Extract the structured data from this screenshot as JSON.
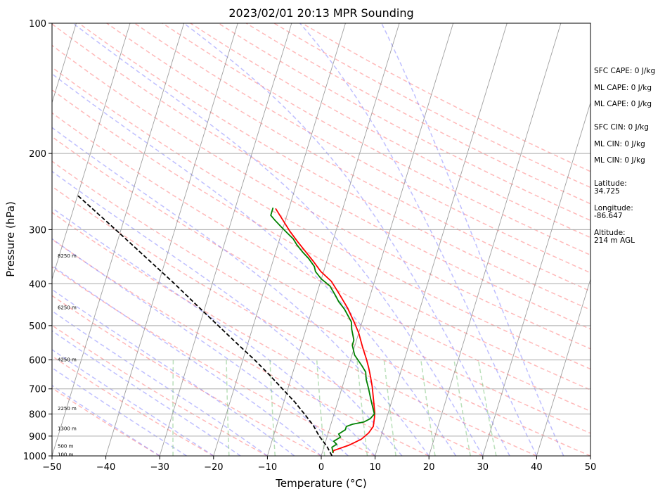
{
  "chart_data": {
    "type": "line",
    "title": "2023/02/01 20:13 MPR Sounding",
    "xlabel": "Temperature (°C)",
    "ylabel": "Pressure (hPa)",
    "xlim": [
      -50,
      50
    ],
    "ylim": [
      1000,
      100
    ],
    "y_scale": "log",
    "grid": true,
    "x_ticks": [
      -50,
      -40,
      -30,
      -20,
      -10,
      0,
      10,
      20,
      30,
      40,
      50
    ],
    "y_ticks": [
      100,
      200,
      300,
      400,
      500,
      600,
      700,
      800,
      900,
      1000
    ],
    "height_labels": [
      {
        "text": "100 m",
        "p": 995
      },
      {
        "text": "500 m",
        "p": 950
      },
      {
        "text": "1300 m",
        "p": 865
      },
      {
        "text": "2250 m",
        "p": 778
      },
      {
        "text": "4250 m",
        "p": 600
      },
      {
        "text": "6250 m",
        "p": 455
      },
      {
        "text": "8250 m",
        "p": 345
      }
    ],
    "series": [
      {
        "color": "#ff0000",
        "points": [
          [
            2.0,
            985
          ],
          [
            2.0,
            972
          ],
          [
            4.5,
            945
          ],
          [
            6.5,
            915
          ],
          [
            7.5,
            885
          ],
          [
            8.0,
            855
          ],
          [
            7.7,
            815
          ],
          [
            7.5,
            795
          ],
          [
            6.5,
            740
          ],
          [
            5.5,
            690
          ],
          [
            4.5,
            650
          ],
          [
            3.8,
            625
          ],
          [
            3.0,
            600
          ],
          [
            1.5,
            560
          ],
          [
            0.0,
            520
          ],
          [
            -1.5,
            490
          ],
          [
            -3.5,
            455
          ],
          [
            -6.0,
            420
          ],
          [
            -8.0,
            395
          ],
          [
            -10.5,
            375
          ],
          [
            -12.5,
            355
          ],
          [
            -14.5,
            337
          ],
          [
            -16.5,
            320
          ],
          [
            -18.5,
            303
          ],
          [
            -20.5,
            285
          ],
          [
            -22.5,
            268
          ]
        ]
      },
      {
        "color": "#008000",
        "points": [
          [
            2.0,
            985
          ],
          [
            1.8,
            972
          ],
          [
            1.5,
            955
          ],
          [
            2.2,
            940
          ],
          [
            1.5,
            925
          ],
          [
            2.5,
            905
          ],
          [
            2.0,
            890
          ],
          [
            3.0,
            870
          ],
          [
            3.0,
            855
          ],
          [
            4.0,
            845
          ],
          [
            6.0,
            835
          ],
          [
            7.0,
            820
          ],
          [
            7.5,
            800
          ],
          [
            7.0,
            780
          ],
          [
            6.0,
            740
          ],
          [
            5.0,
            700
          ],
          [
            4.0,
            665
          ],
          [
            3.5,
            640
          ],
          [
            2.5,
            620
          ],
          [
            0.5,
            585
          ],
          [
            -0.5,
            555
          ],
          [
            -0.5,
            540
          ],
          [
            -1.5,
            510
          ],
          [
            -2.0,
            490
          ],
          [
            -4.0,
            458
          ],
          [
            -5.5,
            440
          ],
          [
            -6.5,
            425
          ],
          [
            -8.0,
            405
          ],
          [
            -10.0,
            390
          ],
          [
            -11.5,
            375
          ],
          [
            -12.0,
            365
          ],
          [
            -13.5,
            350
          ],
          [
            -15.0,
            338
          ],
          [
            -16.5,
            325
          ],
          [
            -17.5,
            315
          ],
          [
            -19.0,
            305
          ],
          [
            -20.5,
            295
          ],
          [
            -22.0,
            285
          ],
          [
            -23.0,
            278
          ],
          [
            -23.0,
            267
          ]
        ]
      },
      {
        "color": "#000000",
        "dashed": true,
        "points": [
          [
            2.0,
            1000
          ],
          [
            0.5,
            950
          ],
          [
            -1.5,
            900
          ],
          [
            -3.2,
            850
          ],
          [
            -5.5,
            800
          ],
          [
            -8.0,
            750
          ],
          [
            -11.0,
            700
          ],
          [
            -14.2,
            650
          ],
          [
            -17.8,
            600
          ],
          [
            -22.0,
            550
          ],
          [
            -26.5,
            500
          ],
          [
            -31.5,
            450
          ],
          [
            -37.0,
            400
          ],
          [
            -43.5,
            350
          ],
          [
            -51.0,
            300
          ],
          [
            -60.0,
            250
          ]
        ]
      }
    ],
    "isotherm_temps": [
      -170,
      -160,
      -150,
      -140,
      -130,
      -120,
      -110,
      -100,
      -90,
      -80,
      -70,
      -60,
      -50,
      -40,
      -30,
      -20,
      -10,
      0,
      10,
      20,
      30,
      40,
      50
    ],
    "dry_adiabat_thetas": [
      -30,
      -20,
      -10,
      0,
      10,
      20,
      30,
      40,
      50,
      60,
      70,
      80,
      90,
      100,
      110,
      120,
      130,
      140,
      150,
      160,
      170,
      180,
      190,
      200
    ],
    "moist_adiabat_starts": [
      -30,
      -25,
      -20,
      -15,
      -10,
      -5,
      0,
      5,
      10,
      15,
      20,
      25,
      30,
      35,
      40,
      45
    ],
    "mixing_ratios": [
      0.4,
      1,
      2,
      4,
      7,
      10,
      16,
      24,
      32
    ],
    "colors": {
      "dry_adiabat": "#ff8080",
      "moist_adiabat": "#8080ff",
      "mixing_ratio": "#66bb66",
      "isotherm": "#888888",
      "isobar": "#aaaaaa"
    }
  },
  "side_info": [
    "SFC CAPE: 0 J/kg",
    "ML CAPE: 0 J/kg",
    "ML CAPE: 0 J/kg",
    "SFC CIN: 0 J/kg",
    "ML CIN: 0 J/kg",
    "ML CIN: 0 J/kg",
    "Latitude:",
    "34.725",
    "Longitude:",
    "-86.647",
    "Altitude:",
    "214 m AGL"
  ]
}
